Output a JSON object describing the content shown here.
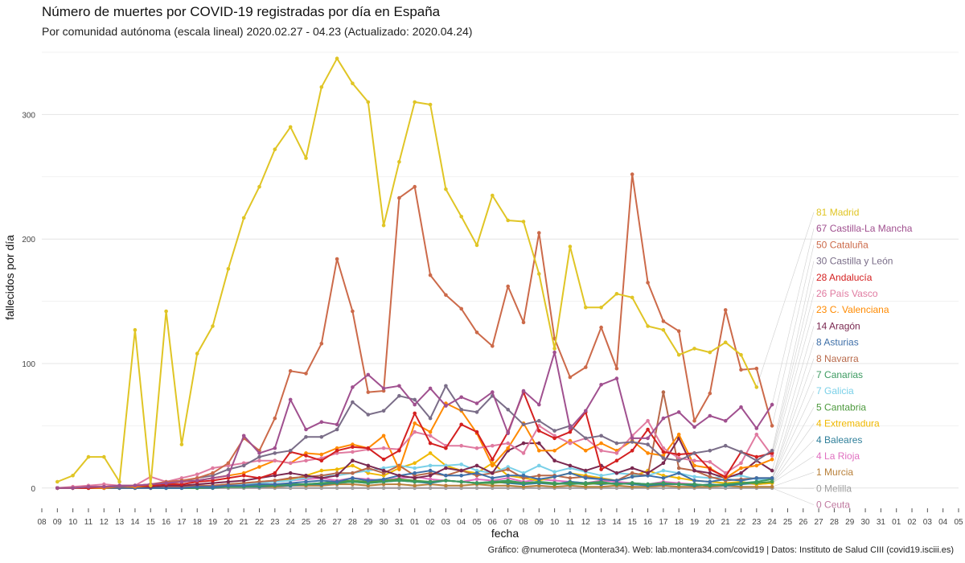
{
  "chart_data": {
    "type": "line",
    "title": "Número de muertes por COVID-19 registradas por día en España",
    "subtitle": "Por comunidad autónoma (escala lineal) 2020.02.27 - 04.23 (Actualizado: 2020.04.24)",
    "xlabel": "fecha",
    "ylabel": "fallecidos por día",
    "caption": "Gráfico: @numeroteca (Montera34). Web: lab.montera34.com/covid19 | Datos: Instituto de Salud CIII (covid19.isciii.es)",
    "x_tick_labels": [
      "08",
      "09",
      "10",
      "11",
      "12",
      "13",
      "14",
      "15",
      "16",
      "17",
      "18",
      "19",
      "20",
      "21",
      "22",
      "23",
      "24",
      "25",
      "26",
      "27",
      "28",
      "29",
      "30",
      "31",
      "01",
      "02",
      "03",
      "04",
      "05",
      "06",
      "07",
      "08",
      "09",
      "10",
      "11",
      "12",
      "13",
      "14",
      "15",
      "16",
      "17",
      "18",
      "19",
      "20",
      "21",
      "22",
      "23",
      "24",
      "25",
      "26",
      "27",
      "28",
      "29",
      "30",
      "31",
      "01",
      "02",
      "03",
      "04",
      "05"
    ],
    "y_ticks": [
      0,
      100,
      200,
      300
    ],
    "ylim": [
      -15,
      350
    ],
    "grid": true,
    "legend": "end-labels-right",
    "x_start_index": 1,
    "series": [
      {
        "name": "Madrid",
        "last": 81,
        "color": "#e0c525",
        "values": [
          5,
          10,
          25,
          25,
          5,
          127,
          2,
          142,
          35,
          108,
          130,
          176,
          217,
          242,
          272,
          290,
          265,
          322,
          345,
          325,
          310,
          211,
          262,
          310,
          308,
          240,
          218,
          195,
          235,
          215,
          214,
          172,
          112,
          194,
          145,
          145,
          156,
          153,
          130,
          127,
          107,
          112,
          109,
          117,
          107,
          81
        ]
      },
      {
        "name": "Castilla-La Mancha",
        "last": 67,
        "color": "#a0508f",
        "values": [
          0,
          0,
          1,
          1,
          2,
          2,
          3,
          4,
          5,
          6,
          8,
          10,
          42,
          28,
          32,
          71,
          47,
          53,
          51,
          81,
          91,
          80,
          82,
          67,
          80,
          66,
          73,
          68,
          77,
          44,
          78,
          67,
          109,
          48,
          62,
          83,
          88,
          40,
          40,
          56,
          61,
          49,
          58,
          54,
          65,
          48,
          67
        ]
      },
      {
        "name": "Cataluña",
        "last": 50,
        "color": "#cc6a4a",
        "values": [
          0,
          0,
          1,
          1,
          2,
          2,
          3,
          5,
          6,
          8,
          12,
          20,
          40,
          30,
          56,
          94,
          92,
          116,
          184,
          142,
          77,
          78,
          233,
          242,
          171,
          155,
          144,
          125,
          114,
          162,
          133,
          205,
          120,
          89,
          97,
          129,
          96,
          252,
          165,
          134,
          126,
          54,
          76,
          143,
          95,
          96,
          50
        ]
      },
      {
        "name": "Castilla y León",
        "last": 30,
        "color": "#7a6d88",
        "values": [
          0,
          0,
          1,
          1,
          1,
          2,
          3,
          4,
          5,
          8,
          10,
          15,
          18,
          25,
          28,
          30,
          41,
          41,
          47,
          69,
          59,
          62,
          74,
          71,
          56,
          82,
          63,
          61,
          74,
          63,
          51,
          54,
          46,
          50,
          40,
          42,
          36,
          37,
          35,
          24,
          22,
          28,
          30,
          34,
          29,
          22,
          30
        ]
      },
      {
        "name": "Andalucía",
        "last": 28,
        "color": "#d42020",
        "values": [
          0,
          0,
          0,
          1,
          1,
          2,
          2,
          3,
          3,
          5,
          6,
          8,
          10,
          8,
          12,
          29,
          26,
          22,
          30,
          33,
          32,
          23,
          30,
          60,
          36,
          32,
          51,
          45,
          23,
          45,
          77,
          46,
          40,
          45,
          61,
          15,
          22,
          30,
          47,
          29,
          27,
          28,
          15,
          9,
          29,
          25,
          28
        ]
      },
      {
        "name": "País Vasco",
        "last": 26,
        "color": "#e07aa0",
        "values": [
          0,
          1,
          2,
          3,
          2,
          2,
          9,
          5,
          8,
          11,
          16,
          18,
          20,
          22,
          22,
          20,
          22,
          24,
          28,
          29,
          31,
          32,
          31,
          45,
          42,
          34,
          34,
          32,
          34,
          36,
          28,
          50,
          42,
          36,
          40,
          30,
          28,
          42,
          54,
          32,
          24,
          22,
          21,
          12,
          20,
          43,
          26
        ]
      },
      {
        "name": "C. Valenciana",
        "last": 23,
        "color": "#ff8a00",
        "values": [
          0,
          0,
          0,
          0,
          1,
          1,
          2,
          3,
          5,
          6,
          8,
          10,
          12,
          17,
          22,
          20,
          28,
          27,
          32,
          35,
          32,
          42,
          15,
          52,
          45,
          68,
          62,
          44,
          18,
          32,
          52,
          30,
          30,
          38,
          30,
          36,
          30,
          38,
          28,
          26,
          43,
          18,
          16,
          8,
          16,
          18,
          23
        ]
      },
      {
        "name": "Aragón",
        "last": 14,
        "color": "#7a2850",
        "values": [
          0,
          0,
          0,
          0,
          1,
          1,
          1,
          2,
          2,
          3,
          4,
          5,
          6,
          8,
          10,
          12,
          10,
          8,
          10,
          22,
          18,
          14,
          10,
          8,
          10,
          16,
          14,
          18,
          12,
          30,
          36,
          36,
          22,
          18,
          14,
          18,
          12,
          16,
          12,
          20,
          40,
          14,
          12,
          8,
          12,
          22,
          14
        ]
      },
      {
        "name": "Asturias",
        "last": 8,
        "color": "#3e6fa8",
        "values": [
          0,
          0,
          0,
          0,
          0,
          0,
          0,
          0,
          0,
          1,
          1,
          2,
          2,
          3,
          3,
          4,
          5,
          6,
          5,
          8,
          6,
          7,
          10,
          12,
          14,
          10,
          10,
          12,
          8,
          10,
          10,
          7,
          9,
          12,
          8,
          7,
          6,
          9,
          10,
          8,
          12,
          6,
          5,
          7,
          6,
          8,
          8
        ]
      },
      {
        "name": "Navarra",
        "last": 8,
        "color": "#b8694a",
        "values": [
          0,
          0,
          0,
          0,
          0,
          0,
          0,
          1,
          1,
          2,
          2,
          3,
          4,
          5,
          6,
          8,
          9,
          10,
          12,
          12,
          16,
          12,
          18,
          10,
          12,
          10,
          14,
          10,
          12,
          15,
          8,
          10,
          10,
          8,
          9,
          7,
          6,
          12,
          10,
          77,
          16,
          14,
          9,
          6,
          7,
          8,
          8
        ]
      },
      {
        "name": "Canarias",
        "last": 7,
        "color": "#3c9a60",
        "values": [
          0,
          0,
          0,
          0,
          0,
          0,
          0,
          0,
          0,
          0,
          1,
          1,
          1,
          2,
          2,
          3,
          3,
          4,
          4,
          5,
          4,
          5,
          6,
          5,
          5,
          6,
          5,
          4,
          5,
          6,
          4,
          5,
          4,
          3,
          4,
          5,
          3,
          4,
          3,
          4,
          3,
          3,
          2,
          3,
          4,
          5,
          7
        ]
      },
      {
        "name": "Galicia",
        "last": 7,
        "color": "#7ad0e8",
        "values": [
          0,
          0,
          0,
          0,
          0,
          0,
          0,
          1,
          1,
          1,
          2,
          2,
          3,
          4,
          5,
          6,
          8,
          10,
          10,
          12,
          14,
          16,
          18,
          16,
          18,
          18,
          19,
          14,
          12,
          17,
          12,
          18,
          13,
          16,
          13,
          10,
          12,
          11,
          10,
          14,
          12,
          9,
          8,
          9,
          10,
          7,
          7
        ]
      },
      {
        "name": "Cantabria",
        "last": 5,
        "color": "#4e9a3e",
        "values": [
          0,
          0,
          0,
          0,
          0,
          0,
          0,
          0,
          0,
          0,
          1,
          1,
          1,
          2,
          2,
          3,
          3,
          4,
          5,
          6,
          5,
          6,
          7,
          6,
          5,
          6,
          5,
          4,
          4,
          5,
          4,
          5,
          3,
          4,
          3,
          4,
          3,
          4,
          3,
          4,
          3,
          3,
          2,
          3,
          4,
          4,
          5
        ]
      },
      {
        "name": "Extremadura",
        "last": 4,
        "color": "#f0b800",
        "values": [
          0,
          0,
          0,
          0,
          0,
          0,
          0,
          1,
          1,
          1,
          2,
          3,
          4,
          5,
          6,
          7,
          10,
          14,
          15,
          18,
          12,
          10,
          16,
          20,
          28,
          18,
          14,
          12,
          20,
          10,
          8,
          6,
          9,
          12,
          10,
          8,
          6,
          9,
          14,
          10,
          8,
          6,
          5,
          4,
          5,
          3,
          4
        ]
      },
      {
        "name": "Baleares",
        "last": 4,
        "color": "#2f7f9a",
        "values": [
          0,
          0,
          0,
          0,
          0,
          0,
          0,
          0,
          0,
          0,
          0,
          1,
          1,
          1,
          2,
          2,
          3,
          3,
          4,
          5,
          4,
          5,
          6,
          5,
          4,
          6,
          5,
          4,
          5,
          4,
          3,
          4,
          3,
          5,
          4,
          3,
          4,
          3,
          2,
          3,
          3,
          2,
          3,
          2,
          3,
          4,
          4
        ]
      },
      {
        "name": "La Rioja",
        "last": 4,
        "color": "#e070c0",
        "values": [
          0,
          0,
          0,
          0,
          0,
          0,
          0,
          0,
          1,
          1,
          2,
          3,
          3,
          4,
          5,
          6,
          7,
          8,
          6,
          8,
          7,
          6,
          8,
          9,
          7,
          6,
          5,
          7,
          6,
          8,
          5,
          7,
          6,
          5,
          4,
          6,
          5,
          4,
          3,
          5,
          4,
          3,
          2,
          3,
          4,
          3,
          4
        ]
      },
      {
        "name": "Murcia",
        "last": 1,
        "color": "#b8803a",
        "values": [
          0,
          0,
          0,
          0,
          0,
          0,
          0,
          0,
          0,
          0,
          0,
          1,
          1,
          1,
          1,
          2,
          2,
          2,
          3,
          3,
          2,
          3,
          3,
          2,
          3,
          2,
          2,
          3,
          2,
          2,
          1,
          2,
          1,
          2,
          1,
          1,
          2,
          1,
          1,
          2,
          1,
          1,
          1,
          2,
          1,
          1,
          1
        ]
      },
      {
        "name": "Melilla",
        "last": 0,
        "color": "#a0a0a0",
        "values": [
          0,
          0,
          0,
          0,
          0,
          0,
          0,
          0,
          0,
          0,
          0,
          0,
          0,
          0,
          0,
          0,
          0,
          0,
          0,
          0,
          0,
          0,
          0,
          0,
          0,
          0,
          0,
          0,
          0,
          0,
          0,
          0,
          0,
          0,
          0,
          0,
          0,
          0,
          0,
          0,
          0,
          0,
          0,
          0,
          0,
          0,
          0
        ]
      },
      {
        "name": "Ceuta",
        "last": 0,
        "color": "#c07aa0",
        "values": [
          0,
          0,
          0,
          0,
          0,
          0,
          0,
          0,
          0,
          0,
          0,
          0,
          0,
          0,
          0,
          0,
          0,
          0,
          0,
          0,
          0,
          0,
          0,
          0,
          0,
          0,
          0,
          0,
          0,
          0,
          0,
          0,
          0,
          0,
          0,
          0,
          0,
          0,
          0,
          0,
          0,
          0,
          0,
          0,
          0,
          0,
          0
        ]
      }
    ]
  }
}
